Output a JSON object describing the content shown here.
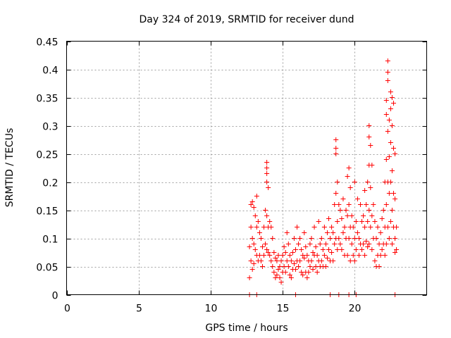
{
  "chart_data": {
    "type": "scatter",
    "title": "Day 324 of 2019, SRMTID for receiver dund",
    "xlabel": "GPS time / hours",
    "ylabel": "SRMTID / TECUs",
    "xlim": [
      0,
      25
    ],
    "ylim": [
      0,
      0.45
    ],
    "xticks": [
      0,
      5,
      10,
      15,
      20
    ],
    "yticks": [
      0,
      0.05,
      0.1,
      0.15,
      0.2,
      0.25,
      0.3,
      0.35,
      0.4,
      0.45
    ],
    "xtick_labels": [
      "0",
      "5",
      "10",
      "15",
      "20"
    ],
    "ytick_labels": [
      "0",
      "0.05",
      "0.1",
      "0.15",
      "0.2",
      "0.25",
      "0.3",
      "0.35",
      "0.4",
      "0.45"
    ],
    "grid": true,
    "marker": "plus",
    "series": [
      {
        "name": "SRMTID",
        "color": "#ff0000",
        "points": [
          [
            12.7,
            0.0
          ],
          [
            13.2,
            0.0
          ],
          [
            15.9,
            0.0
          ],
          [
            18.3,
            0.0
          ],
          [
            18.9,
            0.0
          ],
          [
            19.6,
            0.0
          ],
          [
            20.1,
            0.0
          ],
          [
            22.8,
            0.0
          ],
          [
            12.7,
            0.03
          ],
          [
            12.7,
            0.085
          ],
          [
            12.8,
            0.16
          ],
          [
            12.8,
            0.12
          ],
          [
            12.8,
            0.06
          ],
          [
            12.9,
            0.165
          ],
          [
            12.9,
            0.1
          ],
          [
            12.9,
            0.045
          ],
          [
            13.0,
            0.155
          ],
          [
            13.0,
            0.09
          ],
          [
            13.0,
            0.055
          ],
          [
            13.1,
            0.14
          ],
          [
            13.1,
            0.08
          ],
          [
            13.2,
            0.175
          ],
          [
            13.2,
            0.12
          ],
          [
            13.2,
            0.07
          ],
          [
            13.3,
            0.13
          ],
          [
            13.3,
            0.06
          ],
          [
            13.4,
            0.11
          ],
          [
            13.4,
            0.07
          ],
          [
            13.5,
            0.1
          ],
          [
            13.5,
            0.06
          ],
          [
            13.6,
            0.085
          ],
          [
            13.6,
            0.05
          ],
          [
            13.7,
            0.12
          ],
          [
            13.7,
            0.07
          ],
          [
            13.8,
            0.15
          ],
          [
            13.8,
            0.09
          ],
          [
            13.9,
            0.235
          ],
          [
            13.9,
            0.225
          ],
          [
            13.9,
            0.215
          ],
          [
            13.9,
            0.2
          ],
          [
            13.9,
            0.14
          ],
          [
            13.9,
            0.08
          ],
          [
            14.0,
            0.19
          ],
          [
            14.0,
            0.12
          ],
          [
            14.0,
            0.075
          ],
          [
            14.1,
            0.13
          ],
          [
            14.1,
            0.07
          ],
          [
            14.2,
            0.12
          ],
          [
            14.2,
            0.06
          ],
          [
            14.3,
            0.1
          ],
          [
            14.3,
            0.05
          ],
          [
            14.4,
            0.075
          ],
          [
            14.4,
            0.04
          ],
          [
            14.5,
            0.065
          ],
          [
            14.5,
            0.03
          ],
          [
            14.6,
            0.06
          ],
          [
            14.6,
            0.035
          ],
          [
            14.7,
            0.07
          ],
          [
            14.7,
            0.045
          ],
          [
            14.8,
            0.05
          ],
          [
            14.8,
            0.03
          ],
          [
            14.9,
            0.06
          ],
          [
            14.9,
            0.022
          ],
          [
            15.0,
            0.07
          ],
          [
            15.0,
            0.04
          ],
          [
            15.1,
            0.085
          ],
          [
            15.1,
            0.05
          ],
          [
            15.2,
            0.075
          ],
          [
            15.2,
            0.04
          ],
          [
            15.3,
            0.11
          ],
          [
            15.3,
            0.06
          ],
          [
            15.4,
            0.09
          ],
          [
            15.4,
            0.05
          ],
          [
            15.5,
            0.07
          ],
          [
            15.5,
            0.035
          ],
          [
            15.6,
            0.06
          ],
          [
            15.6,
            0.03
          ],
          [
            15.7,
            0.075
          ],
          [
            15.7,
            0.045
          ],
          [
            15.8,
            0.1
          ],
          [
            15.8,
            0.055
          ],
          [
            15.9,
            0.08
          ],
          [
            15.9,
            0.045
          ],
          [
            16.0,
            0.12
          ],
          [
            16.0,
            0.06
          ],
          [
            16.1,
            0.09
          ],
          [
            16.1,
            0.05
          ],
          [
            16.2,
            0.1
          ],
          [
            16.2,
            0.06
          ],
          [
            16.3,
            0.08
          ],
          [
            16.3,
            0.04
          ],
          [
            16.4,
            0.07
          ],
          [
            16.4,
            0.035
          ],
          [
            16.5,
            0.11
          ],
          [
            16.5,
            0.065
          ],
          [
            16.6,
            0.085
          ],
          [
            16.6,
            0.04
          ],
          [
            16.7,
            0.07
          ],
          [
            16.7,
            0.03
          ],
          [
            16.8,
            0.06
          ],
          [
            16.8,
            0.04
          ],
          [
            16.9,
            0.09
          ],
          [
            16.9,
            0.05
          ],
          [
            17.0,
            0.1
          ],
          [
            17.0,
            0.06
          ],
          [
            17.1,
            0.075
          ],
          [
            17.1,
            0.045
          ],
          [
            17.2,
            0.12
          ],
          [
            17.2,
            0.07
          ],
          [
            17.3,
            0.085
          ],
          [
            17.3,
            0.05
          ],
          [
            17.4,
            0.07
          ],
          [
            17.4,
            0.04
          ],
          [
            17.5,
            0.13
          ],
          [
            17.5,
            0.06
          ],
          [
            17.6,
            0.09
          ],
          [
            17.6,
            0.05
          ],
          [
            17.7,
            0.1
          ],
          [
            17.7,
            0.06
          ],
          [
            17.8,
            0.08
          ],
          [
            17.8,
            0.05
          ],
          [
            17.9,
            0.12
          ],
          [
            17.9,
            0.07
          ],
          [
            18.0,
            0.09
          ],
          [
            18.0,
            0.05
          ],
          [
            18.1,
            0.11
          ],
          [
            18.1,
            0.065
          ],
          [
            18.2,
            0.135
          ],
          [
            18.2,
            0.08
          ],
          [
            18.3,
            0.1
          ],
          [
            18.3,
            0.06
          ],
          [
            18.4,
            0.12
          ],
          [
            18.4,
            0.075
          ],
          [
            18.5,
            0.11
          ],
          [
            18.5,
            0.06
          ],
          [
            18.6,
            0.16
          ],
          [
            18.6,
            0.09
          ],
          [
            18.7,
            0.275
          ],
          [
            18.7,
            0.26
          ],
          [
            18.7,
            0.25
          ],
          [
            18.7,
            0.18
          ],
          [
            18.7,
            0.1
          ],
          [
            18.8,
            0.2
          ],
          [
            18.8,
            0.13
          ],
          [
            18.8,
            0.08
          ],
          [
            18.9,
            0.16
          ],
          [
            18.9,
            0.1
          ],
          [
            19.0,
            0.15
          ],
          [
            19.0,
            0.09
          ],
          [
            19.1,
            0.135
          ],
          [
            19.1,
            0.08
          ],
          [
            19.2,
            0.17
          ],
          [
            19.2,
            0.11
          ],
          [
            19.3,
            0.12
          ],
          [
            19.3,
            0.07
          ],
          [
            19.4,
            0.15
          ],
          [
            19.4,
            0.1
          ],
          [
            19.5,
            0.21
          ],
          [
            19.5,
            0.14
          ],
          [
            19.5,
            0.07
          ],
          [
            19.6,
            0.225
          ],
          [
            19.6,
            0.16
          ],
          [
            19.6,
            0.1
          ],
          [
            19.7,
            0.19
          ],
          [
            19.7,
            0.12
          ],
          [
            19.7,
            0.06
          ],
          [
            19.8,
            0.14
          ],
          [
            19.8,
            0.09
          ],
          [
            19.9,
            0.12
          ],
          [
            19.9,
            0.07
          ],
          [
            20.0,
            0.2
          ],
          [
            20.0,
            0.1
          ],
          [
            20.0,
            0.06
          ],
          [
            20.1,
            0.13
          ],
          [
            20.1,
            0.08
          ],
          [
            20.2,
            0.17
          ],
          [
            20.2,
            0.11
          ],
          [
            20.3,
            0.1
          ],
          [
            20.3,
            0.07
          ],
          [
            20.4,
            0.16
          ],
          [
            20.4,
            0.09
          ],
          [
            20.5,
            0.13
          ],
          [
            20.5,
            0.08
          ],
          [
            20.6,
            0.14
          ],
          [
            20.6,
            0.09
          ],
          [
            20.7,
            0.185
          ],
          [
            20.7,
            0.12
          ],
          [
            20.7,
            0.07
          ],
          [
            20.8,
            0.16
          ],
          [
            20.8,
            0.095
          ],
          [
            20.9,
            0.2
          ],
          [
            20.9,
            0.13
          ],
          [
            20.9,
            0.085
          ],
          [
            21.0,
            0.3
          ],
          [
            21.0,
            0.28
          ],
          [
            21.0,
            0.23
          ],
          [
            21.0,
            0.15
          ],
          [
            21.0,
            0.09
          ],
          [
            21.1,
            0.265
          ],
          [
            21.1,
            0.19
          ],
          [
            21.1,
            0.12
          ],
          [
            21.2,
            0.23
          ],
          [
            21.2,
            0.14
          ],
          [
            21.2,
            0.08
          ],
          [
            21.3,
            0.16
          ],
          [
            21.3,
            0.1
          ],
          [
            21.4,
            0.13
          ],
          [
            21.4,
            0.06
          ],
          [
            21.5,
            0.1
          ],
          [
            21.5,
            0.05
          ],
          [
            21.6,
            0.12
          ],
          [
            21.6,
            0.07
          ],
          [
            21.7,
            0.09
          ],
          [
            21.7,
            0.05
          ],
          [
            21.8,
            0.11
          ],
          [
            21.8,
            0.07
          ],
          [
            21.9,
            0.135
          ],
          [
            21.9,
            0.08
          ],
          [
            22.0,
            0.15
          ],
          [
            22.0,
            0.09
          ],
          [
            22.1,
            0.2
          ],
          [
            22.1,
            0.12
          ],
          [
            22.1,
            0.07
          ],
          [
            22.2,
            0.345
          ],
          [
            22.2,
            0.32
          ],
          [
            22.2,
            0.24
          ],
          [
            22.2,
            0.16
          ],
          [
            22.2,
            0.09
          ],
          [
            22.3,
            0.415
          ],
          [
            22.3,
            0.395
          ],
          [
            22.3,
            0.38
          ],
          [
            22.3,
            0.29
          ],
          [
            22.3,
            0.2
          ],
          [
            22.3,
            0.12
          ],
          [
            22.4,
            0.31
          ],
          [
            22.4,
            0.245
          ],
          [
            22.4,
            0.18
          ],
          [
            22.4,
            0.1
          ],
          [
            22.5,
            0.36
          ],
          [
            22.5,
            0.33
          ],
          [
            22.5,
            0.27
          ],
          [
            22.5,
            0.2
          ],
          [
            22.5,
            0.13
          ],
          [
            22.6,
            0.35
          ],
          [
            22.6,
            0.3
          ],
          [
            22.6,
            0.22
          ],
          [
            22.6,
            0.15
          ],
          [
            22.6,
            0.09
          ],
          [
            22.7,
            0.34
          ],
          [
            22.7,
            0.26
          ],
          [
            22.7,
            0.18
          ],
          [
            22.7,
            0.12
          ],
          [
            22.8,
            0.25
          ],
          [
            22.8,
            0.17
          ],
          [
            22.8,
            0.1
          ],
          [
            22.9,
            0.12
          ],
          [
            22.9,
            0.08
          ],
          [
            22.8,
            0.075
          ]
        ]
      }
    ]
  }
}
